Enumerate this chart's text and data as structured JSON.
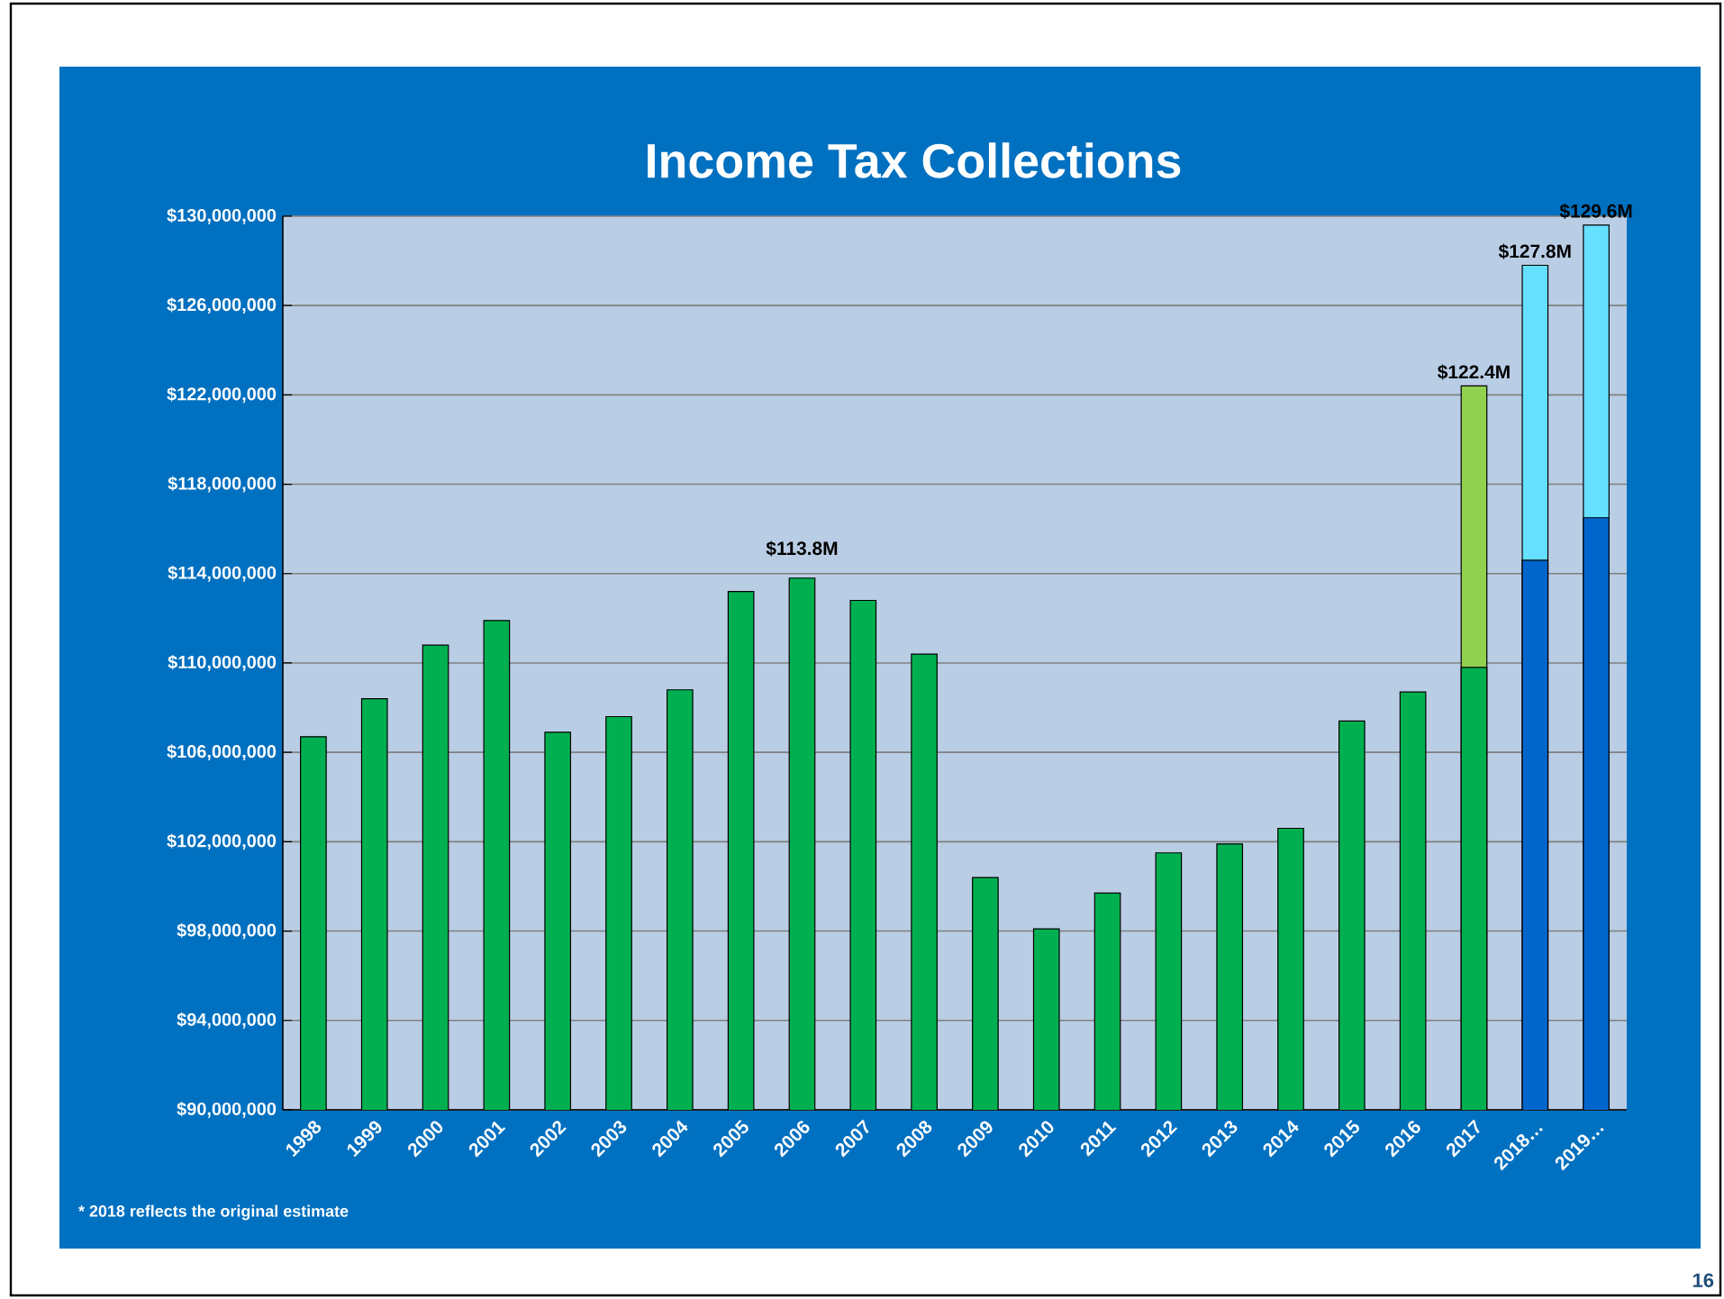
{
  "chart_data": {
    "type": "bar",
    "title": "Income Tax Collections",
    "grid": "y",
    "categories": [
      "1998",
      "1999",
      "2000",
      "2001",
      "2002",
      "2003",
      "2004",
      "2005",
      "2006",
      "2007",
      "2008",
      "2009",
      "2010",
      "2011",
      "2012",
      "2013",
      "2014",
      "2015",
      "2016",
      "2017",
      "2018…",
      "2019…"
    ],
    "series": [
      {
        "values": [
          null,
          null,
          null,
          null,
          null,
          null,
          null,
          null,
          null,
          null,
          null,
          null,
          null,
          null,
          null,
          null,
          null,
          null,
          null,
          122400000,
          127800000,
          129600000
        ],
        "colors": [
          "#92d050",
          "#92d050",
          "#92d050",
          "#92d050",
          "#92d050",
          "#92d050",
          "#92d050",
          "#92d050",
          "#92d050",
          "#92d050",
          "#92d050",
          "#92d050",
          "#92d050",
          "#92d050",
          "#92d050",
          "#92d050",
          "#92d050",
          "#92d050",
          "#92d050",
          "#92d050",
          "#66e0ff",
          "#66e0ff"
        ],
        "value_labels": [
          null,
          null,
          null,
          null,
          null,
          null,
          null,
          null,
          null,
          null,
          null,
          null,
          null,
          null,
          null,
          null,
          null,
          null,
          null,
          "$122.4M",
          "$127.8M",
          "$129.6M"
        ]
      },
      {
        "values": [
          106700000,
          108400000,
          110800000,
          111900000,
          106900000,
          107600000,
          108800000,
          113200000,
          113800000,
          112800000,
          110400000,
          100400000,
          98100000,
          99700000,
          101500000,
          101900000,
          102600000,
          107400000,
          108700000,
          109800000,
          114600000,
          116500000
        ],
        "colors": [
          "#00b050",
          "#00b050",
          "#00b050",
          "#00b050",
          "#00b050",
          "#00b050",
          "#00b050",
          "#00b050",
          "#00b050",
          "#00b050",
          "#00b050",
          "#00b050",
          "#00b050",
          "#00b050",
          "#00b050",
          "#00b050",
          "#00b050",
          "#00b050",
          "#00b050",
          "#00b050",
          "#0066cc",
          "#0066cc"
        ],
        "value_labels": [
          null,
          null,
          null,
          null,
          null,
          null,
          null,
          null,
          "$113.8M",
          null,
          null,
          null,
          null,
          null,
          null,
          null,
          null,
          null,
          null,
          null,
          null,
          null
        ]
      }
    ],
    "ylim": [
      90000000,
      130000000
    ],
    "yticks": [
      {
        "value": 90000000,
        "label": "$90,000,000"
      },
      {
        "value": 94000000,
        "label": "$94,000,000"
      },
      {
        "value": 98000000,
        "label": "$98,000,000"
      },
      {
        "value": 102000000,
        "label": "$102,000,000"
      },
      {
        "value": 106000000,
        "label": "$106,000,000"
      },
      {
        "value": 110000000,
        "label": "$110,000,000"
      },
      {
        "value": 114000000,
        "label": "$114,000,000"
      },
      {
        "value": 118000000,
        "label": "$118,000,000"
      },
      {
        "value": 122000000,
        "label": "$122,000,000"
      },
      {
        "value": 126000000,
        "label": "$126,000,000"
      },
      {
        "value": 130000000,
        "label": "$130,000,000"
      }
    ],
    "annotations": [
      "* 2018 reflects the original estimate",
      "16"
    ]
  }
}
